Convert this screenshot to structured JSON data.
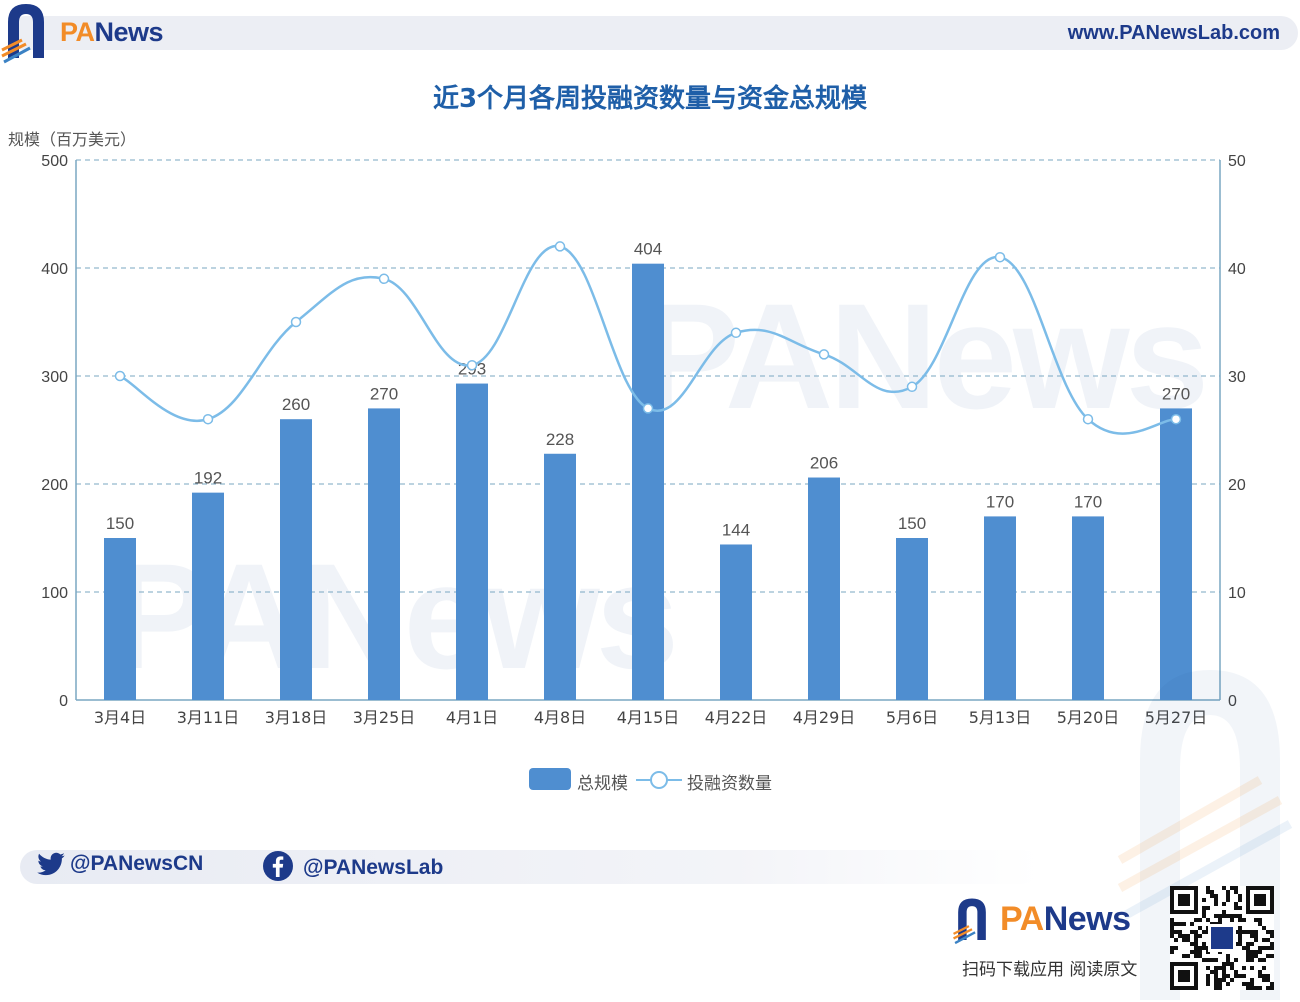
{
  "header": {
    "brand_prefix": "PA",
    "brand_suffix": "News",
    "url": "www.PANewsLab.com"
  },
  "chart_data": {
    "type": "bar",
    "title": "近3个月各周投融资数量与资金总规模",
    "ylabel": "规模（百万美元）",
    "categories": [
      "3月4日",
      "3月11日",
      "3月18日",
      "3月25日",
      "4月1日",
      "4月8日",
      "4月15日",
      "4月22日",
      "4月29日",
      "5月6日",
      "5月13日",
      "5月20日",
      "5月27日"
    ],
    "ylim": [
      0,
      500
    ],
    "y_ticks": [
      "0",
      "100",
      "200",
      "300",
      "400",
      "500"
    ],
    "y2lim": [
      0,
      50
    ],
    "y2_ticks": [
      "0",
      "10",
      "20",
      "30",
      "40",
      "50"
    ],
    "grid": true,
    "legend_position": "bottom-center",
    "series": [
      {
        "name": "总规模",
        "type": "bar",
        "axis": "left",
        "color": "#4f8ed0",
        "values": [
          150,
          192,
          260,
          270,
          293,
          228,
          404,
          144,
          206,
          150,
          170,
          170,
          270
        ],
        "labels": [
          "150",
          "192",
          "260",
          "270",
          "293",
          "228",
          "404",
          "144",
          "206",
          "150",
          "170",
          "170",
          "270"
        ]
      },
      {
        "name": "投融资数量",
        "type": "line",
        "axis": "right",
        "smooth": true,
        "color": "#7cbce8",
        "values": [
          30,
          26,
          35,
          39,
          31,
          42,
          27,
          34,
          32,
          29,
          41,
          26,
          26
        ]
      }
    ]
  },
  "social": {
    "twitter_handle": "@PANewsCN",
    "facebook_handle": "@PANewsLab"
  },
  "footer": {
    "brand_prefix": "PA",
    "brand_suffix": "News",
    "scan_text": "扫码下载应用  阅读原文"
  },
  "colors": {
    "brand_blue": "#1d3a8a",
    "brand_orange": "#f28c28",
    "title_blue": "#1f5fa8"
  }
}
